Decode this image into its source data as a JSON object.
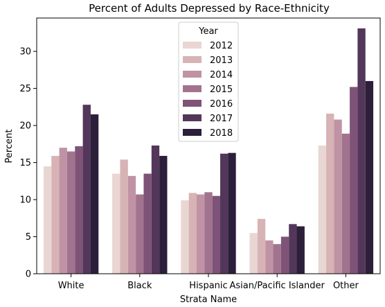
{
  "chart_data": {
    "type": "bar",
    "title": "Percent of Adults Depressed by Race-Ethnicity",
    "xlabel": "Strata Name",
    "ylabel": "Percent",
    "ylim": [
      0,
      34.5
    ],
    "yticks": [
      0,
      5,
      10,
      15,
      20,
      25,
      30
    ],
    "categories": [
      "White",
      "Black",
      "Hispanic",
      "Asian/Pacific Islander",
      "Other"
    ],
    "legend": {
      "title": "Year",
      "placement": "top-center"
    },
    "grid": false,
    "series": [
      {
        "name": "2012",
        "color": "#e9d6d3",
        "values": [
          14.5,
          13.5,
          9.9,
          5.5,
          17.3
        ]
      },
      {
        "name": "2013",
        "color": "#d7b3b6",
        "values": [
          15.9,
          15.4,
          10.9,
          7.4,
          21.6
        ]
      },
      {
        "name": "2014",
        "color": "#c093a4",
        "values": [
          17.0,
          13.2,
          10.7,
          4.5,
          20.8
        ]
      },
      {
        "name": "2015",
        "color": "#a2738f",
        "values": [
          16.5,
          10.7,
          11.0,
          4.0,
          18.9
        ]
      },
      {
        "name": "2016",
        "color": "#7f5378",
        "values": [
          17.2,
          13.5,
          10.5,
          5.0,
          25.2
        ]
      },
      {
        "name": "2017",
        "color": "#53375a",
        "values": [
          22.8,
          17.3,
          16.2,
          6.7,
          33.1
        ]
      },
      {
        "name": "2018",
        "color": "#2c1f3a",
        "values": [
          21.5,
          15.9,
          16.3,
          6.4,
          26.0
        ]
      }
    ]
  }
}
